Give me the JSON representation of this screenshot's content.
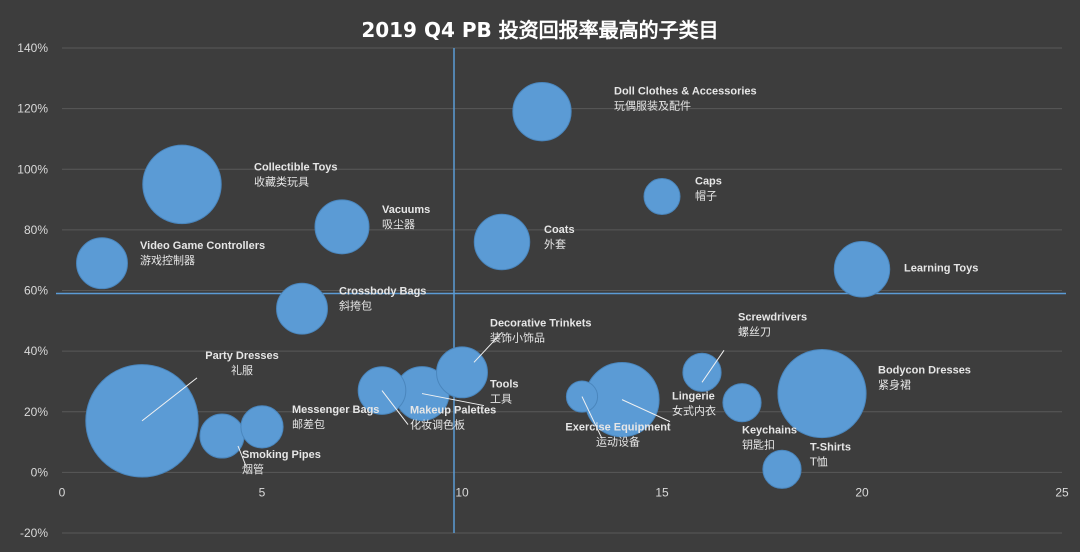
{
  "chart_data": {
    "type": "bubble",
    "title": "2019 Q4 PB 投资回报率最高的子类目",
    "xlabel": "",
    "ylabel": "",
    "xlim": [
      0,
      25
    ],
    "ylim": [
      -20,
      140
    ],
    "x_ticks": [
      0,
      5,
      10,
      15,
      20,
      25
    ],
    "y_ticks": [
      -20,
      0,
      20,
      40,
      60,
      80,
      100,
      120,
      140
    ],
    "y_tick_labels": [
      "-20%",
      "0%",
      "20%",
      "40%",
      "60%",
      "80%",
      "100%",
      "120%",
      "140%"
    ],
    "grid": "horizontal",
    "bubble_color": "#5b9bd5",
    "reference_line_color": "#5b9bd5",
    "reference_lines": {
      "x": 9.8,
      "y": 59
    },
    "points": [
      {
        "en": "Doll Clothes & Accessories",
        "zh": "玩偶服装及配件",
        "x": 12,
        "y": 119,
        "size": 10.5
      },
      {
        "en": "Collectible Toys",
        "zh": "收藏类玩具",
        "x": 3,
        "y": 95,
        "size": 19
      },
      {
        "en": "Caps",
        "zh": "帽子",
        "x": 15,
        "y": 91,
        "size": 4
      },
      {
        "en": "Vacuums",
        "zh": "吸尘器",
        "x": 7,
        "y": 81,
        "size": 9
      },
      {
        "en": "Coats",
        "zh": "外套",
        "x": 11,
        "y": 76,
        "size": 9.5
      },
      {
        "en": "Video Game Controllers",
        "zh": "游戏控制器",
        "x": 1,
        "y": 69,
        "size": 8
      },
      {
        "en": "Learning Toys",
        "zh": "",
        "x": 20,
        "y": 67,
        "size": 9.5
      },
      {
        "en": "Crossbody Bags",
        "zh": "斜挎包",
        "x": 6,
        "y": 54,
        "size": 8
      },
      {
        "en": "Decorative Trinkets",
        "zh": "装饰小饰品",
        "x": 10,
        "y": 33,
        "size": 8
      },
      {
        "en": "Screwdrivers",
        "zh": "螺丝刀",
        "x": 16,
        "y": 33,
        "size": 4.5
      },
      {
        "en": "Party Dresses",
        "zh": "礼服",
        "x": 2,
        "y": 17,
        "size": 39
      },
      {
        "en": "Bodycon Dresses",
        "zh": "紧身裙",
        "x": 19,
        "y": 26,
        "size": 24
      },
      {
        "en": "Tools",
        "zh": "工具",
        "x": 9,
        "y": 26,
        "size": 9
      },
      {
        "en": "Makeup Palettes",
        "zh": "化妆调色板",
        "x": 8,
        "y": 27,
        "size": 7
      },
      {
        "en": "Lingerie",
        "zh": "女式内衣",
        "x": 14,
        "y": 24,
        "size": 17
      },
      {
        "en": "Exercise Equipment",
        "zh": "运动设备",
        "x": 13,
        "y": 25,
        "size": 3
      },
      {
        "en": "Keychains",
        "zh": "钥匙扣",
        "x": 17,
        "y": 23,
        "size": 4.5
      },
      {
        "en": "Messenger Bags",
        "zh": "邮差包",
        "x": 5,
        "y": 15,
        "size": 5.5
      },
      {
        "en": "Smoking Pipes",
        "zh": "烟管",
        "x": 4,
        "y": 12,
        "size": 6
      },
      {
        "en": "T-Shirts",
        "zh": "T恤",
        "x": 18,
        "y": 1,
        "size": 4.5
      }
    ]
  }
}
